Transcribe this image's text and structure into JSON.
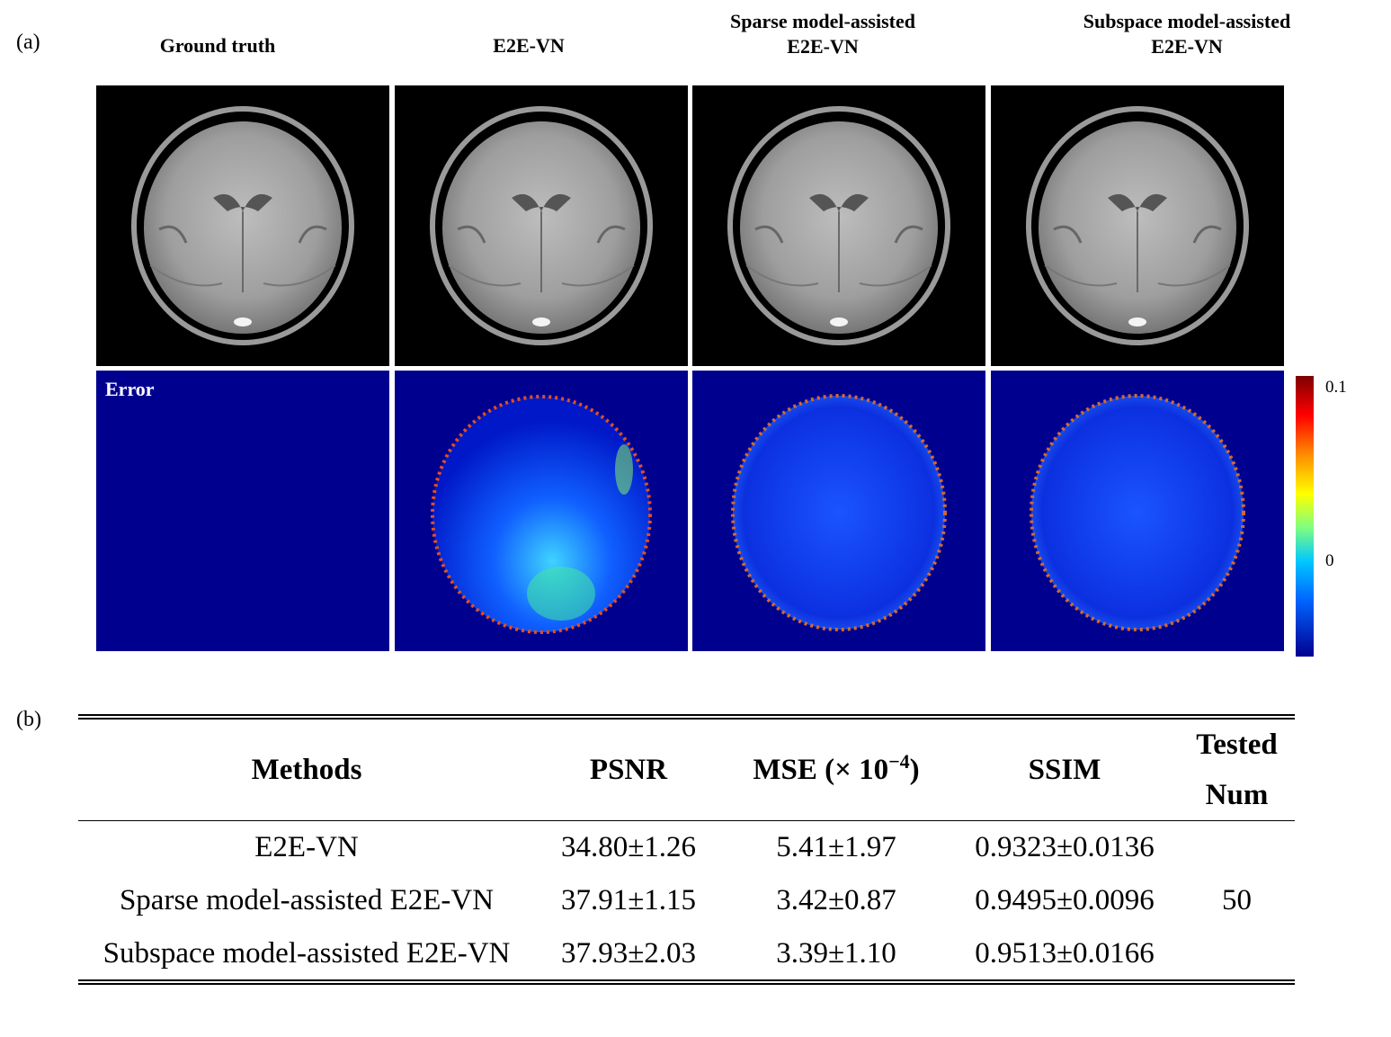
{
  "panel_a": {
    "label": "(a)",
    "columns": [
      {
        "line1": "Ground truth",
        "line2": ""
      },
      {
        "line1": "E2E-VN",
        "line2": ""
      },
      {
        "line1": "Sparse model-assisted",
        "line2": "E2E-VN"
      },
      {
        "line1": "Subspace model-assisted",
        "line2": "E2E-VN"
      }
    ],
    "error_label": "Error",
    "colorbar": {
      "max_label": "0.1",
      "mid_label": "0",
      "colors": [
        "#7f0000",
        "#ff0000",
        "#ffff00",
        "#00c8ff",
        "#00008f"
      ]
    }
  },
  "panel_b": {
    "label": "(b)",
    "headers": {
      "methods": "Methods",
      "psnr": "PSNR",
      "mse_prefix": "MSE (× 10",
      "mse_exp": "−4",
      "mse_suffix": ")",
      "ssim": "SSIM",
      "tested_line1": "Tested",
      "tested_line2": "Num"
    },
    "rows": [
      {
        "method": "E2E-VN",
        "psnr": "34.80±1.26",
        "mse": "5.41±1.97",
        "ssim": "0.9323±0.0136"
      },
      {
        "method": "Sparse model-assisted E2E-VN",
        "psnr": "37.91±1.15",
        "mse": "3.42±0.87",
        "ssim": "0.9495±0.0096"
      },
      {
        "method": "Subspace model-assisted E2E-VN",
        "psnr": "37.93±2.03",
        "mse": "3.39±1.10",
        "ssim": "0.9513±0.0166"
      }
    ],
    "tested_num": "50"
  }
}
